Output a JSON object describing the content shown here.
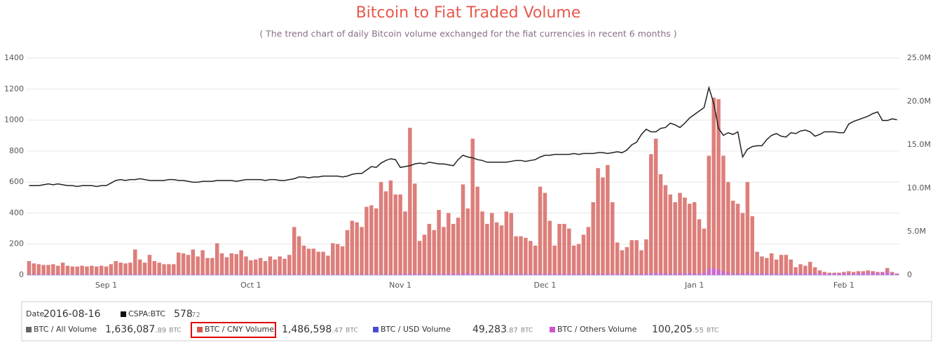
{
  "chart_data": {
    "type": "bar",
    "title": "Bitcoin to Fiat Traded Volume",
    "subtitle": "( The trend chart of daily Bitcoin volume exchanged for the fiat currencies in recent 6 months )",
    "categories": [
      null,
      null,
      null,
      null,
      null,
      null,
      null,
      null,
      null,
      null,
      null,
      null,
      null,
      null,
      null,
      null,
      "Sep 1",
      null,
      null,
      null,
      null,
      null,
      null,
      null,
      null,
      null,
      null,
      null,
      null,
      null,
      null,
      null,
      null,
      null,
      null,
      null,
      null,
      null,
      null,
      null,
      null,
      null,
      null,
      null,
      null,
      null,
      "Oct 1",
      null,
      null,
      null,
      null,
      null,
      null,
      null,
      null,
      null,
      null,
      null,
      null,
      null,
      null,
      null,
      null,
      null,
      null,
      null,
      null,
      null,
      null,
      null,
      null,
      null,
      null,
      null,
      null,
      null,
      null,
      "Nov 1",
      null,
      null,
      null,
      null,
      null,
      null,
      null,
      null,
      null,
      null,
      null,
      null,
      null,
      null,
      null,
      null,
      null,
      null,
      null,
      null,
      null,
      null,
      null,
      null,
      null,
      null,
      null,
      null,
      null,
      "Dec 1",
      null,
      null,
      null,
      null,
      null,
      null,
      null,
      null,
      null,
      null,
      null,
      null,
      null,
      null,
      null,
      null,
      null,
      null,
      null,
      null,
      null,
      null,
      null,
      null,
      null,
      null,
      null,
      null,
      null,
      null,
      "Jan 1",
      null,
      null,
      null,
      null,
      null,
      null,
      null,
      null,
      null,
      null,
      null,
      null,
      null,
      null,
      null,
      null,
      null,
      null,
      null,
      null,
      null,
      null,
      null,
      null,
      null,
      null,
      null,
      null,
      null,
      null,
      "Feb 1",
      null,
      null,
      null,
      null,
      null,
      null,
      null,
      null,
      null,
      null,
      null
    ],
    "series": [
      {
        "type": "bar",
        "color": "#d9706c",
        "values": [
          90,
          75,
          70,
          65,
          65,
          70,
          60,
          80,
          60,
          55,
          55,
          60,
          55,
          60,
          55,
          60,
          55,
          70,
          90,
          80,
          75,
          80,
          165,
          100,
          80,
          130,
          90,
          80,
          70,
          70,
          70,
          145,
          140,
          130,
          165,
          120,
          160,
          110,
          110,
          205,
          140,
          115,
          140,
          135,
          160,
          120,
          95,
          100,
          110,
          90,
          120,
          100,
          120,
          105,
          130,
          310,
          250,
          190,
          170,
          170,
          150,
          150,
          125,
          205,
          200,
          185,
          290,
          350,
          340,
          310,
          440,
          450,
          430,
          600,
          540,
          610,
          520,
          520,
          410,
          950,
          590,
          220,
          260,
          330,
          290,
          420,
          310,
          400,
          330,
          370,
          585,
          430,
          880,
          570,
          410,
          330,
          400,
          340,
          320,
          410,
          400,
          250,
          250,
          240,
          220,
          190,
          570,
          530,
          350,
          190,
          330,
          330,
          300,
          190,
          200,
          260,
          310,
          470,
          690,
          630,
          710,
          470,
          210,
          160,
          180,
          225,
          225,
          160,
          230,
          780,
          880,
          650,
          580,
          520,
          470,
          530,
          500,
          460,
          470,
          360,
          300,
          770,
          1145,
          1135,
          770,
          600,
          480,
          460,
          400,
          600,
          380,
          150,
          120,
          110,
          140,
          100,
          130,
          130,
          100,
          50,
          70,
          60,
          85,
          50,
          30,
          20,
          15,
          15,
          15,
          20,
          25,
          20,
          25,
          25,
          30,
          25,
          20,
          20,
          45,
          20,
          10
        ]
      },
      {
        "type": "bar",
        "color": "#c86bd6",
        "values": [
          5,
          5,
          5,
          5,
          5,
          5,
          5,
          5,
          5,
          5,
          5,
          5,
          5,
          5,
          5,
          5,
          5,
          5,
          5,
          5,
          5,
          5,
          5,
          5,
          5,
          5,
          5,
          5,
          5,
          5,
          5,
          5,
          5,
          5,
          5,
          5,
          5,
          5,
          5,
          5,
          5,
          5,
          5,
          5,
          5,
          5,
          5,
          5,
          5,
          5,
          5,
          5,
          5,
          5,
          5,
          5,
          5,
          5,
          5,
          5,
          5,
          5,
          5,
          5,
          5,
          5,
          5,
          5,
          5,
          5,
          5,
          5,
          5,
          5,
          5,
          5,
          5,
          8,
          8,
          8,
          8,
          8,
          8,
          8,
          8,
          8,
          8,
          8,
          8,
          8,
          10,
          12,
          10,
          8,
          8,
          8,
          8,
          8,
          8,
          8,
          8,
          8,
          8,
          8,
          8,
          8,
          8,
          8,
          8,
          8,
          8,
          8,
          8,
          8,
          8,
          8,
          8,
          8,
          8,
          8,
          8,
          8,
          8,
          8,
          8,
          8,
          8,
          8,
          8,
          12,
          15,
          12,
          10,
          10,
          10,
          12,
          12,
          12,
          10,
          10,
          15,
          40,
          45,
          35,
          25,
          15,
          10,
          10,
          10,
          15,
          10,
          10,
          10,
          10,
          10,
          10,
          10,
          10,
          10,
          10,
          10,
          10,
          10,
          10,
          10,
          10,
          10,
          10,
          10,
          10,
          10,
          10,
          12,
          12,
          15,
          15,
          15,
          15,
          25,
          12,
          8
        ]
      },
      {
        "type": "line",
        "axis": "y2",
        "color": "#222222",
        "values": [
          10.3,
          10.3,
          10.3,
          10.4,
          10.5,
          10.4,
          10.5,
          10.4,
          10.3,
          10.3,
          10.2,
          10.3,
          10.3,
          10.3,
          10.2,
          10.3,
          10.3,
          10.6,
          10.9,
          11.0,
          10.9,
          11.0,
          11.0,
          11.1,
          11.0,
          10.9,
          10.9,
          10.9,
          10.9,
          11.0,
          11.0,
          10.9,
          10.9,
          10.8,
          10.7,
          10.7,
          10.8,
          10.8,
          10.8,
          10.9,
          10.9,
          10.9,
          10.9,
          10.8,
          10.9,
          11.0,
          11.0,
          11.0,
          11.0,
          10.9,
          11.0,
          11.0,
          10.9,
          10.9,
          11.0,
          11.1,
          11.3,
          11.3,
          11.2,
          11.3,
          11.3,
          11.4,
          11.4,
          11.4,
          11.4,
          11.3,
          11.4,
          11.6,
          11.7,
          11.7,
          12.1,
          12.5,
          12.4,
          12.9,
          13.2,
          13.4,
          13.3,
          12.4,
          12.5,
          12.6,
          12.8,
          12.9,
          12.8,
          13.0,
          12.9,
          12.8,
          12.8,
          12.7,
          12.6,
          13.3,
          13.8,
          13.6,
          13.5,
          13.3,
          13.2,
          13.0,
          13.0,
          13.0,
          13.0,
          13.0,
          13.1,
          13.2,
          13.2,
          13.1,
          13.2,
          13.3,
          13.6,
          13.8,
          13.8,
          13.9,
          13.9,
          13.9,
          13.9,
          14.0,
          13.9,
          14.0,
          14.0,
          14.0,
          14.1,
          14.1,
          14.0,
          14.1,
          14.2,
          14.1,
          14.4,
          15.0,
          15.3,
          16.2,
          16.8,
          16.5,
          16.5,
          16.9,
          17.0,
          17.5,
          17.3,
          17.0,
          17.5,
          18.1,
          18.5,
          18.9,
          19.3,
          21.6,
          19.8,
          16.9,
          16.1,
          16.4,
          16.2,
          16.5,
          13.6,
          14.5,
          14.8,
          14.9,
          14.9,
          15.6,
          16.1,
          16.3,
          16.0,
          15.9,
          16.4,
          16.3,
          16.6,
          16.7,
          16.5,
          16.0,
          16.2,
          16.5,
          16.5,
          16.5,
          16.4,
          16.4,
          17.4,
          17.7,
          17.9,
          18.1,
          18.3,
          18.6,
          18.8,
          17.8,
          17.8,
          18.0,
          17.9
        ]
      }
    ],
    "ylim": [
      0,
      1400
    ],
    "yticks": [
      0,
      200,
      400,
      600,
      800,
      1000,
      1200,
      1400
    ],
    "y2lim": [
      0,
      25
    ],
    "y2ticks": [
      0,
      {
        "value": 5,
        "label": "5.0M"
      },
      {
        "value": 10,
        "label": "10.0M"
      },
      {
        "value": 15,
        "label": "15.0M"
      },
      {
        "value": 20,
        "label": "20.0M"
      },
      {
        "value": 25,
        "label": "25.0M"
      }
    ],
    "grid": true
  },
  "info_panel": {
    "date_label": "Date",
    "date": "2016-08-16",
    "price": {
      "name": "CSPA:BTC",
      "value": "578",
      "decimals": ".72",
      "color": "#111111"
    },
    "items": [
      {
        "name": "BTC / All Volume",
        "value": "1,636,087",
        "decimals": ".89",
        "unit": "BTC",
        "color": "#666666"
      },
      {
        "name": "BTC / CNY Volume",
        "value": "1,486,598",
        "decimals": ".47",
        "unit": "BTC",
        "color": "#d9534f"
      },
      {
        "name": "BTC / USD Volume",
        "value": "49,283",
        "decimals": ".87",
        "unit": "BTC",
        "color": "#4a4ad0"
      },
      {
        "name": "BTC / Others Volume",
        "value": "100,205",
        "decimals": ".55",
        "unit": "BTC",
        "color": "#cc55cc"
      }
    ]
  }
}
